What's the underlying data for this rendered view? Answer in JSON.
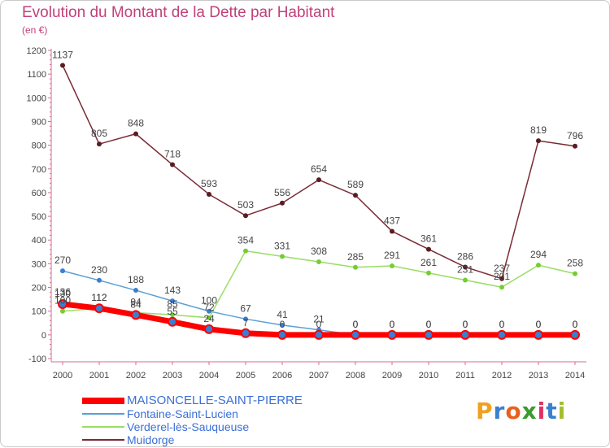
{
  "title": "Evolution du Montant de la Dette par Habitant",
  "unit": "(en €)",
  "logo_text": "Proxiti",
  "chart_data": {
    "type": "line",
    "title": "Evolution du Montant de la Dette par Habitant",
    "ylabel": "(en €)",
    "xlabel": "",
    "ylim": [
      -100,
      1200
    ],
    "yticks": [
      -100,
      0,
      100,
      200,
      300,
      400,
      500,
      600,
      700,
      800,
      900,
      1000,
      1100,
      1200
    ],
    "grid": false,
    "legend_position": "bottom-left",
    "x": [
      "2000",
      "2001",
      "2002",
      "2003",
      "2004",
      "2005",
      "2006",
      "2007",
      "2008",
      "2009",
      "2010",
      "2011",
      "2012",
      "2013",
      "2014"
    ],
    "series": [
      {
        "name": "MAISONCELLE-SAINT-PIERRE",
        "color": "#ff0000",
        "marker": "#3a7fd0",
        "values": [
          130,
          112,
          84,
          55,
          24,
          7,
          0,
          0,
          0,
          0,
          0,
          0,
          0,
          0,
          0
        ]
      },
      {
        "name": "Fontaine-Saint-Lucien",
        "color": "#5a9fd4",
        "marker": "#3a7fd0",
        "values": [
          270,
          230,
          188,
          143,
          100,
          67,
          41,
          21,
          0,
          0,
          0,
          0,
          0,
          0,
          0
        ]
      },
      {
        "name": "Verderel-lès-Sauqueuse",
        "color": "#99dd66",
        "marker": "#77cc33",
        "values": [
          100,
          112,
          94,
          85,
          72,
          354,
          331,
          308,
          285,
          291,
          261,
          231,
          201,
          294,
          258
        ]
      },
      {
        "name": "Muidorge",
        "color": "#7a2b35",
        "marker": "#5a1c20",
        "values": [
          1137,
          805,
          848,
          718,
          593,
          503,
          556,
          654,
          589,
          437,
          361,
          286,
          237,
          819,
          796
        ]
      }
    ],
    "point_labels": [
      {
        "series": 0,
        "values": [
          "130",
          "112",
          "84",
          "55",
          "24",
          "7",
          "0",
          "0",
          "0",
          "0",
          "0",
          "0",
          "0",
          "0",
          "0"
        ]
      },
      {
        "series": 1,
        "values": [
          "270",
          "230",
          "188",
          "143",
          "100",
          "67",
          "41",
          "21",
          "0",
          "0",
          "0",
          "0",
          "0",
          "0",
          "0"
        ]
      },
      {
        "series": 2,
        "values": [
          "100",
          "112",
          "94",
          "85",
          "72",
          "354",
          "331",
          "308",
          "285",
          "291",
          "261",
          "231",
          "201",
          "294",
          "258"
        ]
      },
      {
        "series": 3,
        "values": [
          "1137",
          "805",
          "848",
          "718",
          "593",
          "503",
          "556",
          "654",
          "589",
          "437",
          "361",
          "286",
          "237",
          "819",
          "796"
        ]
      }
    ],
    "extra_labels": [
      "136"
    ]
  }
}
